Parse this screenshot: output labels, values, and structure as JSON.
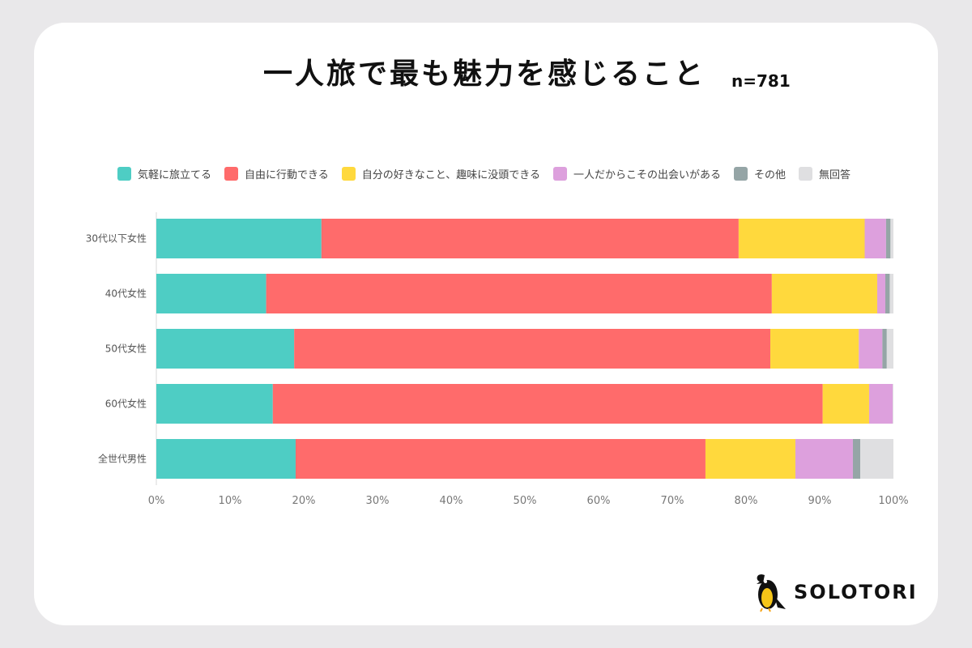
{
  "title": "一人旅で最も魅力を感じること",
  "sample": "n=781",
  "brand": "SOLOTORI",
  "chart_data": {
    "type": "bar",
    "orientation": "horizontal",
    "stacked": true,
    "normalized": true,
    "categories": [
      "30代以下女性",
      "40代女性",
      "50代女性",
      "60代女性",
      "全世代男性"
    ],
    "series": [
      {
        "name": "気軽に旅立てる",
        "color": "#4ecdc4",
        "values": [
          22.4,
          14.9,
          18.7,
          15.8,
          18.9
        ]
      },
      {
        "name": "自由に行動できる",
        "color": "#ff6b6b",
        "values": [
          56.6,
          68.6,
          64.6,
          74.6,
          55.6
        ]
      },
      {
        "name": "自分の好きなこと、趣味に没頭できる",
        "color": "#ffd93d",
        "values": [
          17.1,
          14.3,
          12.0,
          6.3,
          12.2
        ]
      },
      {
        "name": "一人だからこその出会いがある",
        "color": "#dda0dd",
        "values": [
          2.9,
          1.1,
          3.2,
          3.2,
          7.8
        ]
      },
      {
        "name": "その他",
        "color": "#95a5a6",
        "values": [
          0.6,
          0.6,
          0.6,
          0.0,
          1.0
        ]
      },
      {
        "name": "無回答",
        "color": "#dfdfe1",
        "values": [
          0.4,
          0.5,
          0.9,
          0.1,
          4.5
        ]
      }
    ],
    "xlim": [
      0,
      100
    ],
    "xticks": [
      "0%",
      "10%",
      "20%",
      "30%",
      "40%",
      "50%",
      "60%",
      "70%",
      "80%",
      "90%",
      "100%"
    ],
    "legend_position": "top",
    "grid": false
  }
}
